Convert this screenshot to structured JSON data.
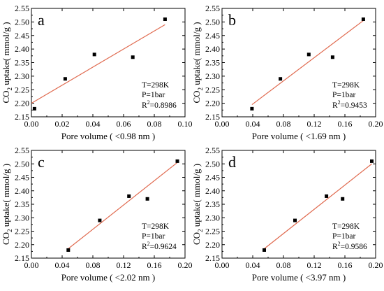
{
  "chart_data": [
    {
      "type": "scatter",
      "panel_label": "a",
      "xlabel": "Pore volume ( <0.98 nm )",
      "ylabel_main": "CO",
      "ylabel_sub": "2",
      "ylabel_rest": " uptake( mmol/g )",
      "xlim": [
        0.0,
        0.1
      ],
      "ylim": [
        2.15,
        2.55
      ],
      "xticks": [
        "0.00",
        "0.02",
        "0.04",
        "0.06",
        "0.08",
        "0.10"
      ],
      "yticks": [
        "2.15",
        "2.20",
        "2.25",
        "2.30",
        "2.35",
        "2.40",
        "2.45",
        "2.50",
        "2.55"
      ],
      "points": [
        {
          "x": 0.002,
          "y": 2.18
        },
        {
          "x": 0.022,
          "y": 2.29
        },
        {
          "x": 0.041,
          "y": 2.38
        },
        {
          "x": 0.066,
          "y": 2.37
        },
        {
          "x": 0.087,
          "y": 2.51
        }
      ],
      "fit_line": [
        {
          "x": 0.0,
          "y": 2.2
        },
        {
          "x": 0.087,
          "y": 2.49
        }
      ],
      "annotation": {
        "t": "T=298K",
        "p": "P=1bar",
        "r_main": "R",
        "r_sup": "2",
        "r_rest": "=0.8986"
      },
      "annotation_position": "bottom-right"
    },
    {
      "type": "scatter",
      "panel_label": "b",
      "xlabel": "Pore volume ( <1.69 nm )",
      "ylabel_main": "CO",
      "ylabel_sub": "2",
      "ylabel_rest": " uptake( mmol/g )",
      "xlim": [
        0.0,
        0.2
      ],
      "ylim": [
        2.15,
        2.55
      ],
      "xticks": [
        "0.00",
        "0.04",
        "0.08",
        "0.12",
        "0.16",
        "0.20"
      ],
      "yticks": [
        "2.15",
        "2.20",
        "2.25",
        "2.30",
        "2.35",
        "2.40",
        "2.45",
        "2.50",
        "2.55"
      ],
      "points": [
        {
          "x": 0.039,
          "y": 2.18
        },
        {
          "x": 0.076,
          "y": 2.29
        },
        {
          "x": 0.113,
          "y": 2.38
        },
        {
          "x": 0.144,
          "y": 2.37
        },
        {
          "x": 0.184,
          "y": 2.51
        }
      ],
      "fit_line": [
        {
          "x": 0.039,
          "y": 2.195
        },
        {
          "x": 0.184,
          "y": 2.505
        }
      ],
      "annotation": {
        "t": "T=298K",
        "p": "P=1bar",
        "r_main": "R",
        "r_sup": "2",
        "r_rest": "=0.9453"
      },
      "annotation_position": "bottom-right"
    },
    {
      "type": "scatter",
      "panel_label": "c",
      "xlabel": "Pore volume ( <2.02 nm )",
      "ylabel_main": "CO",
      "ylabel_sub": "2",
      "ylabel_rest": " uptake( mmol/g )",
      "xlim": [
        0.0,
        0.2
      ],
      "ylim": [
        2.15,
        2.55
      ],
      "xticks": [
        "0.00",
        "0.04",
        "0.08",
        "0.12",
        "0.16",
        "0.20"
      ],
      "yticks": [
        "2.15",
        "2.20",
        "2.25",
        "2.30",
        "2.35",
        "2.40",
        "2.45",
        "2.50",
        "2.55"
      ],
      "points": [
        {
          "x": 0.048,
          "y": 2.18
        },
        {
          "x": 0.089,
          "y": 2.29
        },
        {
          "x": 0.127,
          "y": 2.38
        },
        {
          "x": 0.151,
          "y": 2.37
        },
        {
          "x": 0.19,
          "y": 2.51
        }
      ],
      "fit_line": [
        {
          "x": 0.048,
          "y": 2.185
        },
        {
          "x": 0.19,
          "y": 2.505
        }
      ],
      "annotation": {
        "t": "T=298K",
        "p": "P=1bar",
        "r_main": "R",
        "r_sup": "2",
        "r_rest": "=0.9624"
      },
      "annotation_position": "bottom-right"
    },
    {
      "type": "scatter",
      "panel_label": "d",
      "xlabel": "Pore volume ( <3.97 nm )",
      "ylabel_main": "CO",
      "ylabel_sub": "2",
      "ylabel_rest": " uptake( mmol/g )",
      "xlim": [
        0.0,
        0.2
      ],
      "ylim": [
        2.15,
        2.55
      ],
      "xticks": [
        "0.00",
        "0.04",
        "0.08",
        "0.12",
        "0.16",
        "0.20"
      ],
      "yticks": [
        "2.15",
        "2.20",
        "2.25",
        "2.30",
        "2.35",
        "2.40",
        "2.45",
        "2.50",
        "2.55"
      ],
      "points": [
        {
          "x": 0.055,
          "y": 2.18
        },
        {
          "x": 0.095,
          "y": 2.29
        },
        {
          "x": 0.136,
          "y": 2.38
        },
        {
          "x": 0.157,
          "y": 2.37
        },
        {
          "x": 0.195,
          "y": 2.51
        }
      ],
      "fit_line": [
        {
          "x": 0.055,
          "y": 2.185
        },
        {
          "x": 0.195,
          "y": 2.5
        }
      ],
      "annotation": {
        "t": "T=298K",
        "p": "P=1bar",
        "r_main": "R",
        "r_sup": "2",
        "r_rest": "=0.9586"
      },
      "annotation_position": "bottom-right"
    }
  ],
  "colors": {
    "fit_line": "#e06a4f",
    "marker": "#000000",
    "axis": "#000000"
  }
}
